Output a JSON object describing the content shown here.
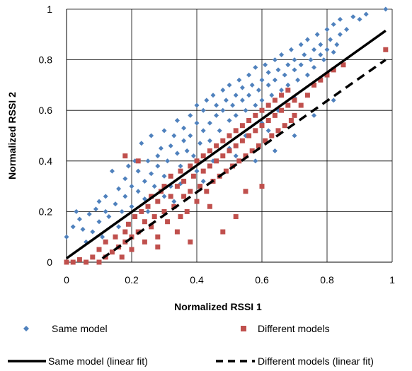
{
  "chart_data": {
    "type": "scatter",
    "title": "",
    "xlabel": "Normalized RSSI 1",
    "ylabel": "Normalized RSSI 2",
    "xlim": [
      0,
      1
    ],
    "ylim": [
      0,
      1
    ],
    "x_ticks": [
      "0",
      "0.2",
      "0.4",
      "0.6",
      "0.8",
      "1"
    ],
    "y_ticks": [
      "0",
      "0.2",
      "0.4",
      "0.6",
      "0.8",
      "1"
    ],
    "grid": true,
    "legend_position": "bottom",
    "series": [
      {
        "name": "Same model",
        "marker": "diamond",
        "color": "#4f81bd",
        "points": [
          [
            0.0,
            0.1
          ],
          [
            0.02,
            0.14
          ],
          [
            0.03,
            0.2
          ],
          [
            0.04,
            0.17
          ],
          [
            0.05,
            0.13
          ],
          [
            0.06,
            0.08
          ],
          [
            0.07,
            0.19
          ],
          [
            0.08,
            0.12
          ],
          [
            0.09,
            0.21
          ],
          [
            0.1,
            0.16
          ],
          [
            0.1,
            0.24
          ],
          [
            0.11,
            0.1
          ],
          [
            0.12,
            0.2
          ],
          [
            0.12,
            0.26
          ],
          [
            0.13,
            0.18
          ],
          [
            0.14,
            0.36
          ],
          [
            0.15,
            0.23
          ],
          [
            0.16,
            0.14
          ],
          [
            0.16,
            0.29
          ],
          [
            0.17,
            0.2
          ],
          [
            0.18,
            0.33
          ],
          [
            0.18,
            0.26
          ],
          [
            0.19,
            0.38
          ],
          [
            0.2,
            0.22
          ],
          [
            0.2,
            0.3
          ],
          [
            0.21,
            0.4
          ],
          [
            0.22,
            0.28
          ],
          [
            0.22,
            0.36
          ],
          [
            0.23,
            0.47
          ],
          [
            0.24,
            0.32
          ],
          [
            0.24,
            0.25
          ],
          [
            0.25,
            0.4
          ],
          [
            0.26,
            0.35
          ],
          [
            0.26,
            0.5
          ],
          [
            0.27,
            0.3
          ],
          [
            0.28,
            0.42
          ],
          [
            0.28,
            0.38
          ],
          [
            0.29,
            0.45
          ],
          [
            0.3,
            0.34
          ],
          [
            0.3,
            0.52
          ],
          [
            0.31,
            0.4
          ],
          [
            0.32,
            0.46
          ],
          [
            0.32,
            0.3
          ],
          [
            0.33,
            0.5
          ],
          [
            0.34,
            0.43
          ],
          [
            0.34,
            0.56
          ],
          [
            0.35,
            0.38
          ],
          [
            0.36,
            0.48
          ],
          [
            0.36,
            0.53
          ],
          [
            0.37,
            0.44
          ],
          [
            0.38,
            0.58
          ],
          [
            0.38,
            0.5
          ],
          [
            0.39,
            0.42
          ],
          [
            0.4,
            0.55
          ],
          [
            0.4,
            0.62
          ],
          [
            0.41,
            0.47
          ],
          [
            0.42,
            0.6
          ],
          [
            0.42,
            0.52
          ],
          [
            0.43,
            0.64
          ],
          [
            0.44,
            0.55
          ],
          [
            0.44,
            0.48
          ],
          [
            0.45,
            0.66
          ],
          [
            0.46,
            0.58
          ],
          [
            0.46,
            0.62
          ],
          [
            0.47,
            0.52
          ],
          [
            0.48,
            0.68
          ],
          [
            0.48,
            0.6
          ],
          [
            0.49,
            0.64
          ],
          [
            0.5,
            0.56
          ],
          [
            0.5,
            0.7
          ],
          [
            0.51,
            0.62
          ],
          [
            0.52,
            0.66
          ],
          [
            0.52,
            0.58
          ],
          [
            0.53,
            0.72
          ],
          [
            0.54,
            0.64
          ],
          [
            0.54,
            0.69
          ],
          [
            0.55,
            0.6
          ],
          [
            0.56,
            0.74
          ],
          [
            0.56,
            0.66
          ],
          [
            0.57,
            0.7
          ],
          [
            0.58,
            0.62
          ],
          [
            0.58,
            0.77
          ],
          [
            0.59,
            0.68
          ],
          [
            0.6,
            0.72
          ],
          [
            0.6,
            0.64
          ],
          [
            0.61,
            0.78
          ],
          [
            0.62,
            0.7
          ],
          [
            0.62,
            0.75
          ],
          [
            0.63,
            0.66
          ],
          [
            0.64,
            0.8
          ],
          [
            0.64,
            0.72
          ],
          [
            0.65,
            0.76
          ],
          [
            0.66,
            0.68
          ],
          [
            0.66,
            0.82
          ],
          [
            0.67,
            0.74
          ],
          [
            0.68,
            0.78
          ],
          [
            0.68,
            0.7
          ],
          [
            0.69,
            0.84
          ],
          [
            0.7,
            0.76
          ],
          [
            0.7,
            0.8
          ],
          [
            0.71,
            0.72
          ],
          [
            0.72,
            0.86
          ],
          [
            0.72,
            0.78
          ],
          [
            0.73,
            0.82
          ],
          [
            0.74,
            0.74
          ],
          [
            0.74,
            0.88
          ],
          [
            0.75,
            0.8
          ],
          [
            0.76,
            0.84
          ],
          [
            0.76,
            0.77
          ],
          [
            0.77,
            0.9
          ],
          [
            0.78,
            0.82
          ],
          [
            0.78,
            0.86
          ],
          [
            0.79,
            0.8
          ],
          [
            0.8,
            0.92
          ],
          [
            0.8,
            0.84
          ],
          [
            0.81,
            0.88
          ],
          [
            0.82,
            0.83
          ],
          [
            0.82,
            0.94
          ],
          [
            0.83,
            0.86
          ],
          [
            0.84,
            0.9
          ],
          [
            0.84,
            0.96
          ],
          [
            0.86,
            0.92
          ],
          [
            0.88,
            0.97
          ],
          [
            0.9,
            0.96
          ],
          [
            0.92,
            0.98
          ],
          [
            0.98,
            1.0
          ],
          [
            0.25,
            0.2
          ],
          [
            0.3,
            0.26
          ],
          [
            0.35,
            0.31
          ],
          [
            0.4,
            0.36
          ],
          [
            0.45,
            0.4
          ],
          [
            0.5,
            0.45
          ],
          [
            0.55,
            0.5
          ],
          [
            0.6,
            0.55
          ],
          [
            0.65,
            0.6
          ],
          [
            0.7,
            0.65
          ],
          [
            0.33,
            0.24
          ],
          [
            0.42,
            0.32
          ],
          [
            0.52,
            0.42
          ],
          [
            0.62,
            0.52
          ],
          [
            0.72,
            0.62
          ],
          [
            0.58,
            0.4
          ],
          [
            0.64,
            0.44
          ],
          [
            0.7,
            0.5
          ],
          [
            0.76,
            0.58
          ],
          [
            0.82,
            0.64
          ]
        ]
      },
      {
        "name": "Different models",
        "marker": "square",
        "color": "#c0504d",
        "points": [
          [
            0.0,
            0.0
          ],
          [
            0.02,
            0.0
          ],
          [
            0.04,
            0.01
          ],
          [
            0.06,
            0.0
          ],
          [
            0.08,
            0.02
          ],
          [
            0.1,
            0.0
          ],
          [
            0.1,
            0.05
          ],
          [
            0.12,
            0.02
          ],
          [
            0.12,
            0.08
          ],
          [
            0.14,
            0.04
          ],
          [
            0.15,
            0.1
          ],
          [
            0.16,
            0.06
          ],
          [
            0.17,
            0.02
          ],
          [
            0.18,
            0.12
          ],
          [
            0.18,
            0.08
          ],
          [
            0.19,
            0.15
          ],
          [
            0.2,
            0.05
          ],
          [
            0.2,
            0.1
          ],
          [
            0.21,
            0.18
          ],
          [
            0.22,
            0.12
          ],
          [
            0.22,
            0.4
          ],
          [
            0.23,
            0.2
          ],
          [
            0.24,
            0.08
          ],
          [
            0.24,
            0.16
          ],
          [
            0.25,
            0.22
          ],
          [
            0.26,
            0.14
          ],
          [
            0.26,
            0.26
          ],
          [
            0.27,
            0.18
          ],
          [
            0.28,
            0.24
          ],
          [
            0.28,
            0.1
          ],
          [
            0.29,
            0.28
          ],
          [
            0.3,
            0.2
          ],
          [
            0.3,
            0.3
          ],
          [
            0.31,
            0.16
          ],
          [
            0.32,
            0.26
          ],
          [
            0.32,
            0.34
          ],
          [
            0.33,
            0.22
          ],
          [
            0.34,
            0.3
          ],
          [
            0.34,
            0.12
          ],
          [
            0.35,
            0.36
          ],
          [
            0.36,
            0.26
          ],
          [
            0.36,
            0.32
          ],
          [
            0.37,
            0.2
          ],
          [
            0.38,
            0.38
          ],
          [
            0.38,
            0.28
          ],
          [
            0.39,
            0.34
          ],
          [
            0.4,
            0.24
          ],
          [
            0.4,
            0.4
          ],
          [
            0.41,
            0.3
          ],
          [
            0.42,
            0.36
          ],
          [
            0.42,
            0.42
          ],
          [
            0.43,
            0.28
          ],
          [
            0.44,
            0.38
          ],
          [
            0.44,
            0.44
          ],
          [
            0.45,
            0.32
          ],
          [
            0.46,
            0.4
          ],
          [
            0.46,
            0.46
          ],
          [
            0.47,
            0.34
          ],
          [
            0.48,
            0.42
          ],
          [
            0.48,
            0.48
          ],
          [
            0.49,
            0.36
          ],
          [
            0.5,
            0.44
          ],
          [
            0.5,
            0.5
          ],
          [
            0.51,
            0.38
          ],
          [
            0.52,
            0.46
          ],
          [
            0.52,
            0.52
          ],
          [
            0.53,
            0.4
          ],
          [
            0.54,
            0.48
          ],
          [
            0.54,
            0.54
          ],
          [
            0.55,
            0.42
          ],
          [
            0.56,
            0.5
          ],
          [
            0.56,
            0.56
          ],
          [
            0.57,
            0.44
          ],
          [
            0.58,
            0.52
          ],
          [
            0.58,
            0.58
          ],
          [
            0.59,
            0.46
          ],
          [
            0.6,
            0.54
          ],
          [
            0.6,
            0.6
          ],
          [
            0.61,
            0.48
          ],
          [
            0.62,
            0.56
          ],
          [
            0.62,
            0.62
          ],
          [
            0.63,
            0.5
          ],
          [
            0.64,
            0.58
          ],
          [
            0.64,
            0.64
          ],
          [
            0.65,
            0.52
          ],
          [
            0.66,
            0.6
          ],
          [
            0.66,
            0.66
          ],
          [
            0.67,
            0.54
          ],
          [
            0.68,
            0.62
          ],
          [
            0.68,
            0.68
          ],
          [
            0.69,
            0.56
          ],
          [
            0.7,
            0.64
          ],
          [
            0.7,
            0.58
          ],
          [
            0.72,
            0.62
          ],
          [
            0.74,
            0.66
          ],
          [
            0.76,
            0.7
          ],
          [
            0.78,
            0.72
          ],
          [
            0.8,
            0.74
          ],
          [
            0.82,
            0.76
          ],
          [
            0.85,
            0.78
          ],
          [
            0.98,
            0.84
          ],
          [
            0.18,
            0.42
          ],
          [
            0.28,
            0.06
          ],
          [
            0.35,
            0.18
          ],
          [
            0.44,
            0.22
          ],
          [
            0.52,
            0.18
          ],
          [
            0.55,
            0.28
          ],
          [
            0.6,
            0.3
          ],
          [
            0.48,
            0.12
          ],
          [
            0.38,
            0.08
          ]
        ]
      },
      {
        "name": "Same model (linear fit)",
        "line_style": "solid",
        "color": "#000000",
        "points": [
          [
            0.0,
            0.015
          ],
          [
            0.98,
            0.915
          ]
        ]
      },
      {
        "name": "Different models (linear fit)",
        "line_style": "dashed",
        "color": "#000000",
        "points": [
          [
            0.11,
            0.015
          ],
          [
            0.98,
            0.8
          ]
        ]
      }
    ]
  }
}
